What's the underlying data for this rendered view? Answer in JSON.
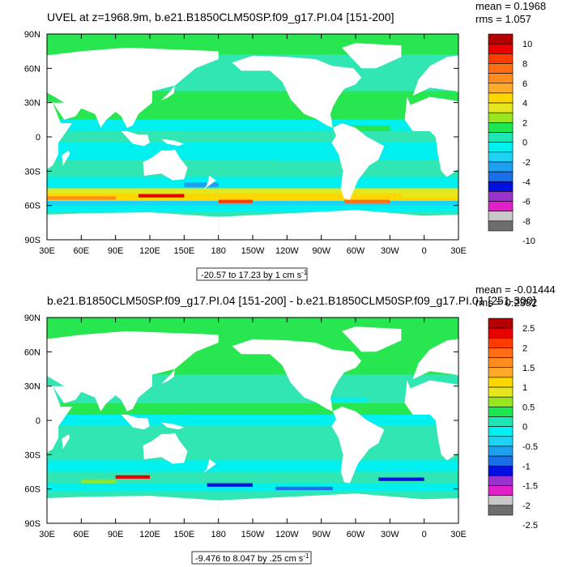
{
  "chart_data": [
    {
      "type": "heatmap",
      "title": "UVEL at z=1968.9m, b.e21.B1850CLM50SP.f09_g17.PI.04 [151-200]",
      "stats": {
        "mean": "mean = 0.1968",
        "rms": "rms = 1.057"
      },
      "range_label": "-20.57 to 17.23 by 1 cm s",
      "range_exp": "-1",
      "xticks": [
        "30E",
        "60E",
        "90E",
        "120E",
        "150E",
        "180",
        "150W",
        "120W",
        "90W",
        "60W",
        "30W",
        "0",
        "30E"
      ],
      "yticks": [
        "90N",
        "60N",
        "30N",
        "0",
        "30S",
        "60S",
        "90S"
      ],
      "colorbar_labels": [
        "10",
        "8",
        "6",
        "4",
        "2",
        "0",
        "-2",
        "-4",
        "-6",
        "-8",
        "-10"
      ]
    },
    {
      "type": "heatmap",
      "title": "b.e21.B1850CLM50SP.f09_g17.PI.04 [151-200] - b.e21.B1850CLM50SP.f09_g17.PI.01 [251-300]",
      "stats": {
        "mean": "mean = -0.01444",
        "rms": "rms = 0.2382"
      },
      "range_label": "-9.476 to 8.047 by .25 cm s",
      "range_exp": "-1",
      "xticks": [
        "30E",
        "60E",
        "90E",
        "120E",
        "150E",
        "180",
        "150W",
        "120W",
        "90W",
        "60W",
        "30W",
        "0",
        "30E"
      ],
      "yticks": [
        "90N",
        "60N",
        "30N",
        "0",
        "30S",
        "60S",
        "90S"
      ],
      "colorbar_labels": [
        "2.5",
        "2",
        "1.5",
        "1",
        "0.5",
        "0",
        "-0.5",
        "-1",
        "-1.5",
        "-2",
        "-2.5"
      ]
    }
  ],
  "colors": {
    "palette": [
      "#6e6e6e",
      "#c8c8c8",
      "#e020c8",
      "#9a32cd",
      "#0010e0",
      "#1a6ee8",
      "#1ea0f0",
      "#1ed2f5",
      "#00f0f0",
      "#1ee6b4",
      "#1ee650",
      "#9ae61e",
      "#e6e61e",
      "#ffd700",
      "#ffaa28",
      "#ff8c1e",
      "#ff6e14",
      "#ff3c00",
      "#e60000",
      "#b40000"
    ],
    "ocean_base": "#32e6b4",
    "ocean_alt": "#28e650",
    "cyan": "#00f0f0",
    "land": "#ffffff"
  }
}
